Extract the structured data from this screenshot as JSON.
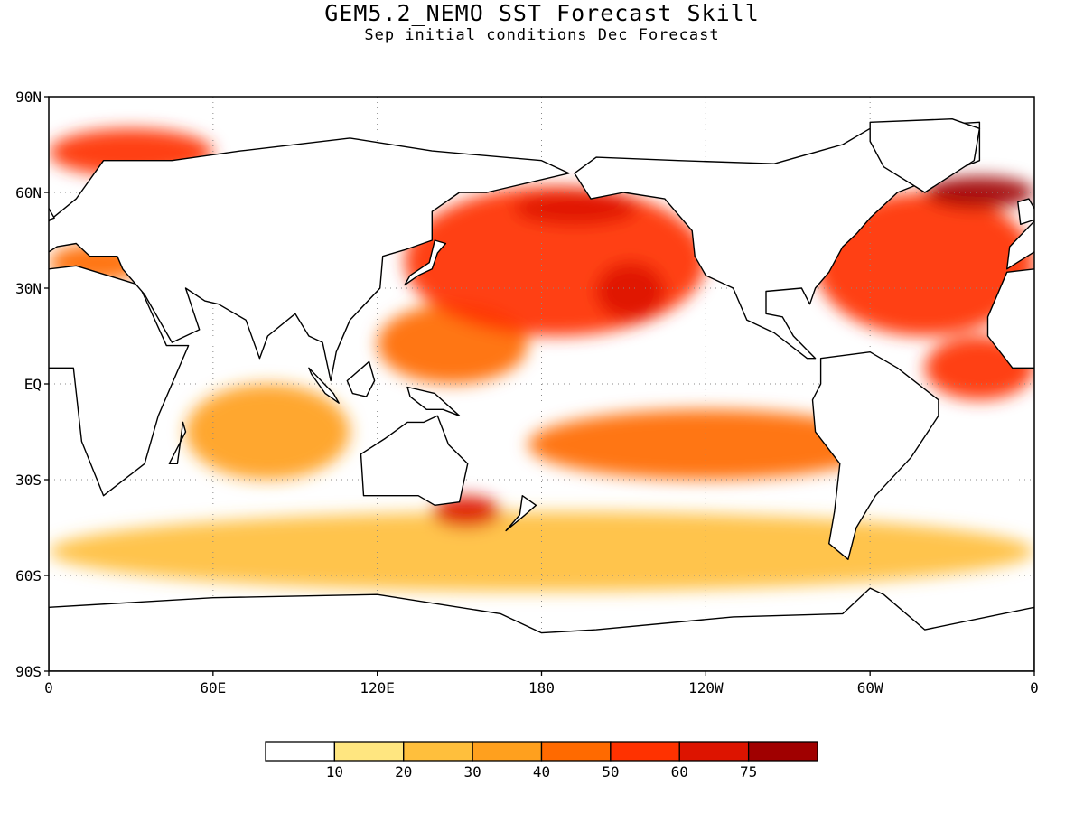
{
  "title": "GEM5.2_NEMO SST Forecast Skill",
  "subtitle": "Sep initial conditions  Dec Forecast",
  "map": {
    "projection": "equirectangular",
    "lon_range": [
      0,
      360
    ],
    "lat_range": [
      -90,
      90
    ],
    "grid": "dotted",
    "lat_labels": [
      "90N",
      "60N",
      "30N",
      "EQ",
      "30S",
      "60S",
      "90S"
    ],
    "lon_labels": [
      "0",
      "60E",
      "120E",
      "180",
      "120W",
      "60W",
      "0"
    ]
  },
  "colorbar": {
    "orientation": "horizontal",
    "placement": "bottom",
    "colors": [
      "#ffffff",
      "#ffe680",
      "#ffbf3c",
      "#ffa01e",
      "#ff6a00",
      "#ff3200",
      "#dd1400",
      "#a00000"
    ],
    "labels": [
      "10",
      "20",
      "30",
      "40",
      "50",
      "60",
      "75"
    ]
  },
  "field": {
    "variable": "SST Forecast Skill",
    "regions": [
      {
        "name": "North Pacific",
        "lon": [
          130,
          240
        ],
        "lat": [
          15,
          62
        ],
        "level": 5
      },
      {
        "name": "Central North Pacific core",
        "lon": [
          200,
          225
        ],
        "lat": [
          20,
          38
        ],
        "level": 6
      },
      {
        "name": "Gulf of Alaska",
        "lon": [
          170,
          215
        ],
        "lat": [
          50,
          60
        ],
        "level": 6
      },
      {
        "name": "Western Pacific",
        "lon": [
          120,
          175
        ],
        "lat": [
          0,
          25
        ],
        "level": 4
      },
      {
        "name": "Tropical South Pacific",
        "lon": [
          175,
          305
        ],
        "lat": [
          -30,
          -8
        ],
        "level": 4
      },
      {
        "name": "North Atlantic",
        "lon": [
          280,
          360
        ],
        "lat": [
          15,
          60
        ],
        "level": 5
      },
      {
        "name": "Northeast Atlantic core",
        "lon": [
          320,
          360
        ],
        "lat": [
          55,
          65
        ],
        "level": 7
      },
      {
        "name": "Tropical Atlantic",
        "lon": [
          320,
          360
        ],
        "lat": [
          -5,
          15
        ],
        "level": 5
      },
      {
        "name": "Indian Ocean",
        "lon": [
          50,
          110
        ],
        "lat": [
          -30,
          0
        ],
        "level": 3
      },
      {
        "name": "Tasman Sea",
        "lon": [
          140,
          165
        ],
        "lat": [
          -45,
          -35
        ],
        "level": 6
      },
      {
        "name": "Southern Ocean",
        "lon": [
          0,
          360
        ],
        "lat": [
          -65,
          -40
        ],
        "level": 2
      },
      {
        "name": "Barents / Norwegian Sea",
        "lon": [
          0,
          60
        ],
        "lat": [
          65,
          80
        ],
        "level": 5
      },
      {
        "name": "Mediterranean",
        "lon": [
          0,
          35
        ],
        "lat": [
          32,
          44
        ],
        "level": 4
      }
    ]
  },
  "continents": [
    {
      "name": "Africa",
      "pts": [
        [
          -17,
          21
        ],
        [
          -10,
          35
        ],
        [
          10,
          37
        ],
        [
          33,
          31
        ],
        [
          43,
          12
        ],
        [
          51,
          12
        ],
        [
          40,
          -10
        ],
        [
          35,
          -25
        ],
        [
          20,
          -35
        ],
        [
          12,
          -18
        ],
        [
          9,
          5
        ],
        [
          -8,
          5
        ],
        [
          -17,
          15
        ]
      ]
    },
    {
      "name": "Eurasia",
      "pts": [
        [
          -10,
          36
        ],
        [
          -9,
          43
        ],
        [
          0,
          51
        ],
        [
          10,
          58
        ],
        [
          20,
          70
        ],
        [
          45,
          70
        ],
        [
          70,
          73
        ],
        [
          110,
          77
        ],
        [
          140,
          73
        ],
        [
          180,
          70
        ],
        [
          190,
          66
        ],
        [
          160,
          60
        ],
        [
          150,
          60
        ],
        [
          140,
          54
        ],
        [
          140,
          45
        ],
        [
          130,
          42
        ],
        [
          122,
          40
        ],
        [
          121,
          30
        ],
        [
          110,
          20
        ],
        [
          105,
          10
        ],
        [
          103,
          1
        ],
        [
          100,
          13
        ],
        [
          95,
          15
        ],
        [
          90,
          22
        ],
        [
          80,
          15
        ],
        [
          77,
          8
        ],
        [
          72,
          20
        ],
        [
          62,
          25
        ],
        [
          57,
          26
        ],
        [
          50,
          30
        ],
        [
          55,
          17
        ],
        [
          45,
          13
        ],
        [
          35,
          28
        ],
        [
          27,
          36
        ],
        [
          25,
          40
        ],
        [
          15,
          40
        ],
        [
          10,
          44
        ],
        [
          3,
          43
        ]
      ]
    },
    {
      "name": "North America",
      "pts": [
        [
          192,
          66
        ],
        [
          200,
          71
        ],
        [
          230,
          70
        ],
        [
          265,
          69
        ],
        [
          290,
          75
        ],
        [
          300,
          80
        ],
        [
          340,
          82
        ],
        [
          340,
          70
        ],
        [
          310,
          60
        ],
        [
          300,
          52
        ],
        [
          295,
          47
        ],
        [
          290,
          43
        ],
        [
          285,
          35
        ],
        [
          280,
          30
        ],
        [
          278,
          25
        ],
        [
          275,
          30
        ],
        [
          262,
          29
        ],
        [
          262,
          22
        ],
        [
          268,
          21
        ],
        [
          272,
          15
        ],
        [
          280,
          8
        ],
        [
          277,
          8
        ],
        [
          265,
          16
        ],
        [
          255,
          20
        ],
        [
          250,
          30
        ],
        [
          240,
          34
        ],
        [
          236,
          40
        ],
        [
          235,
          48
        ],
        [
          225,
          58
        ],
        [
          210,
          60
        ],
        [
          198,
          58
        ]
      ]
    },
    {
      "name": "South America",
      "pts": [
        [
          282,
          8
        ],
        [
          300,
          10
        ],
        [
          310,
          5
        ],
        [
          325,
          -5
        ],
        [
          325,
          -10
        ],
        [
          315,
          -23
        ],
        [
          302,
          -35
        ],
        [
          295,
          -45
        ],
        [
          292,
          -55
        ],
        [
          285,
          -50
        ],
        [
          287,
          -40
        ],
        [
          289,
          -25
        ],
        [
          280,
          -15
        ],
        [
          279,
          -5
        ],
        [
          282,
          0
        ]
      ]
    },
    {
      "name": "Australia",
      "pts": [
        [
          114,
          -22
        ],
        [
          123,
          -17
        ],
        [
          131,
          -12
        ],
        [
          137,
          -12
        ],
        [
          142,
          -10
        ],
        [
          146,
          -19
        ],
        [
          153,
          -25
        ],
        [
          150,
          -37
        ],
        [
          141,
          -38
        ],
        [
          135,
          -35
        ],
        [
          115,
          -35
        ]
      ]
    },
    {
      "name": "Antarctica",
      "pts": [
        [
          0,
          -70
        ],
        [
          60,
          -67
        ],
        [
          120,
          -66
        ],
        [
          165,
          -72
        ],
        [
          180,
          -78
        ],
        [
          200,
          -77
        ],
        [
          250,
          -73
        ],
        [
          290,
          -72
        ],
        [
          300,
          -64
        ],
        [
          305,
          -66
        ],
        [
          320,
          -77
        ],
        [
          360,
          -70
        ],
        [
          360,
          -90
        ],
        [
          0,
          -90
        ]
      ]
    },
    {
      "name": "Greenland",
      "pts": [
        [
          300,
          82
        ],
        [
          330,
          83
        ],
        [
          340,
          80
        ],
        [
          338,
          70
        ],
        [
          320,
          60
        ],
        [
          305,
          68
        ],
        [
          300,
          76
        ]
      ]
    },
    {
      "name": "Madagascar",
      "pts": [
        [
          44,
          -25
        ],
        [
          50,
          -15
        ],
        [
          49,
          -12
        ],
        [
          47,
          -25
        ]
      ]
    },
    {
      "name": "Borneo",
      "pts": [
        [
          109,
          1
        ],
        [
          117,
          7
        ],
        [
          119,
          1
        ],
        [
          116,
          -4
        ],
        [
          111,
          -3
        ]
      ]
    },
    {
      "name": "New Guinea",
      "pts": [
        [
          131,
          -1
        ],
        [
          141,
          -3
        ],
        [
          150,
          -10
        ],
        [
          144,
          -8
        ],
        [
          138,
          -8
        ],
        [
          132,
          -4
        ]
      ]
    },
    {
      "name": "Japan",
      "pts": [
        [
          130,
          31
        ],
        [
          135,
          34
        ],
        [
          140,
          36
        ],
        [
          142,
          41
        ],
        [
          145,
          44
        ],
        [
          141,
          45
        ],
        [
          139,
          38
        ],
        [
          132,
          34
        ]
      ]
    },
    {
      "name": "UK",
      "pts": [
        [
          -5,
          50
        ],
        [
          2,
          52
        ],
        [
          -2,
          58
        ],
        [
          -6,
          57
        ]
      ]
    },
    {
      "name": "New Zealand",
      "pts": [
        [
          167,
          -46
        ],
        [
          174,
          -41
        ],
        [
          178,
          -38
        ],
        [
          173,
          -35
        ],
        [
          172,
          -41
        ]
      ]
    },
    {
      "name": "Sumatra",
      "pts": [
        [
          95,
          5
        ],
        [
          104,
          -3
        ],
        [
          106,
          -6
        ],
        [
          101,
          -3
        ],
        [
          96,
          3
        ]
      ]
    }
  ]
}
